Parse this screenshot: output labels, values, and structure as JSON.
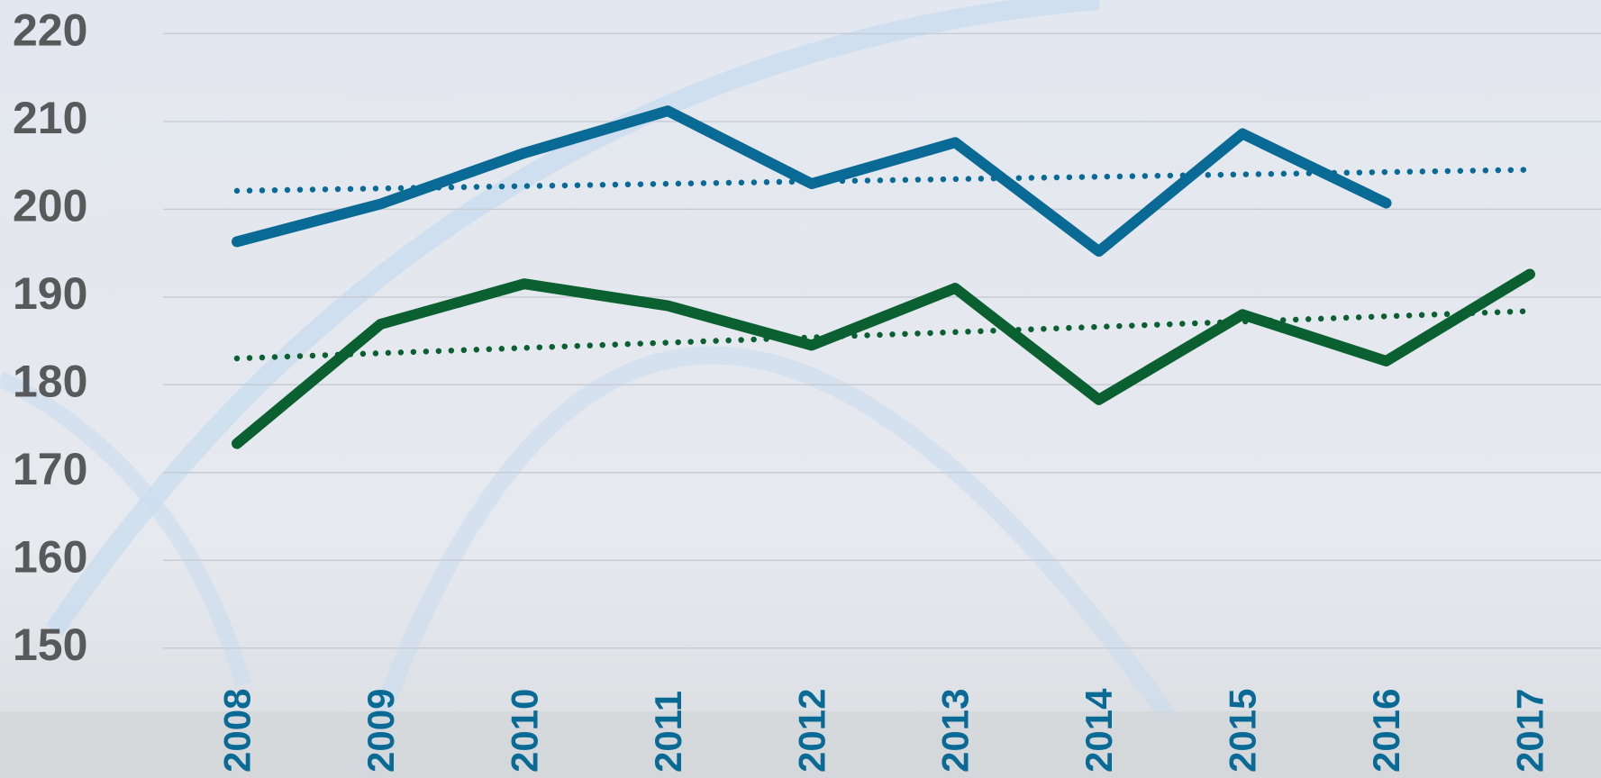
{
  "chart_data": {
    "type": "line",
    "categories": [
      "2008",
      "2009",
      "2010",
      "2011",
      "2012",
      "2013",
      "2014",
      "2015",
      "2016",
      "2017"
    ],
    "series": [
      {
        "color": "#0a6a96",
        "values": [
          196.3,
          200.6,
          206.4,
          211.2,
          202.9,
          207.6,
          195.2,
          208.6,
          200.7,
          null
        ]
      },
      {
        "color": "#0a6030",
        "values": [
          173.3,
          186.9,
          191.5,
          189.0,
          184.5,
          191.0,
          178.3,
          188.0,
          182.7,
          192.6
        ]
      }
    ],
    "trendlines": [
      {
        "color": "#0a6a96",
        "values": [
          202.1,
          204.5
        ]
      },
      {
        "color": "#0a6030",
        "values": [
          183.0,
          188.4
        ]
      }
    ],
    "ylim": [
      150,
      220
    ],
    "yticks": [
      150,
      160,
      170,
      180,
      190,
      200,
      210,
      220
    ],
    "grid": true
  }
}
